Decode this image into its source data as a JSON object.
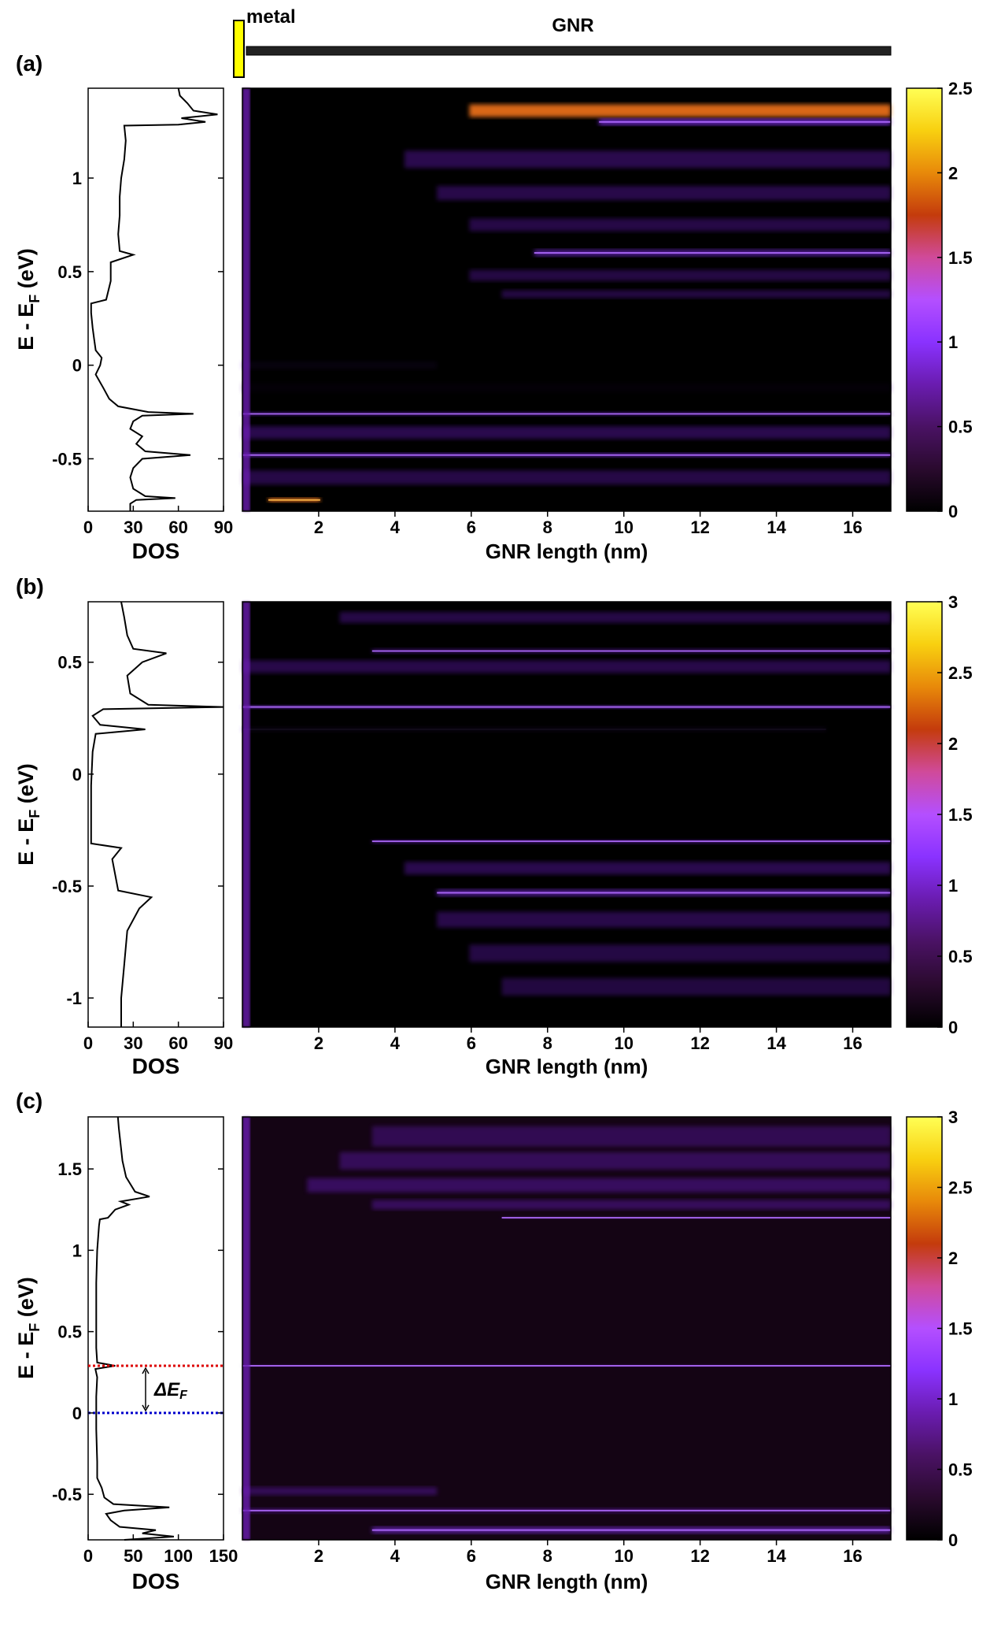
{
  "schematic": {
    "metal_label": "metal",
    "gnr_label": "GNR",
    "metal_color": "#ffff00",
    "ribbon_color": "#222222"
  },
  "colormap": [
    "#000000",
    "#2a0a2e",
    "#4a1264",
    "#6a1cb0",
    "#8a32ff",
    "#b44fff",
    "#d04a9a",
    "#c43b0c",
    "#e8890a",
    "#f8d010",
    "#ffff55"
  ],
  "panels": [
    {
      "label": "(a)",
      "dos": {
        "xlabel": "DOS",
        "ylabel_main": "E - E",
        "ylabel_sub": "F",
        "ylabel_tail": " (eV)",
        "xlim": [
          0,
          90
        ],
        "xticks": [
          "0",
          "30",
          "60",
          "90"
        ],
        "ylim": [
          -0.78,
          1.48
        ],
        "yticks": [
          "-0.5",
          "0",
          "0.5",
          "1"
        ]
      },
      "map": {
        "xlabel": "GNR length (nm)",
        "xlim": [
          0,
          17
        ],
        "xticks": [
          "2",
          "4",
          "6",
          "8",
          "10",
          "12",
          "14",
          "16"
        ]
      },
      "colorbar": {
        "ticks": [
          "0",
          "0.5",
          "1",
          "1.5",
          "2",
          "2.5"
        ],
        "max": 2.5
      }
    },
    {
      "label": "(b)",
      "dos": {
        "xlabel": "DOS",
        "ylabel_main": "E - E",
        "ylabel_sub": "F",
        "ylabel_tail": " (eV)",
        "xlim": [
          0,
          90
        ],
        "xticks": [
          "0",
          "30",
          "60",
          "90"
        ],
        "ylim": [
          -1.13,
          0.77
        ],
        "yticks": [
          "-1",
          "-0.5",
          "0",
          "0.5"
        ]
      },
      "map": {
        "xlabel": "GNR length (nm)",
        "xlim": [
          0,
          17
        ],
        "xticks": [
          "2",
          "4",
          "6",
          "8",
          "10",
          "12",
          "14",
          "16"
        ]
      },
      "colorbar": {
        "ticks": [
          "0",
          "0.5",
          "1",
          "1.5",
          "2",
          "2.5",
          "3"
        ],
        "max": 3
      }
    },
    {
      "label": "(c)",
      "dos": {
        "xlabel": "DOS",
        "ylabel_main": "E - E",
        "ylabel_sub": "F",
        "ylabel_tail": " (eV)",
        "xlim": [
          0,
          150
        ],
        "xticks": [
          "0",
          "50",
          "100",
          "150"
        ],
        "ylim": [
          -0.78,
          1.82
        ],
        "yticks": [
          "-0.5",
          "0",
          "0.5",
          "1",
          "1.5"
        ],
        "delta_label": "ΔE",
        "delta_sub": "F",
        "red_line_value": 0.29,
        "blue_line_value": 0,
        "red_color": "#dd0000",
        "blue_color": "#0000cc"
      },
      "map": {
        "xlabel": "GNR length (nm)",
        "xlim": [
          0,
          17
        ],
        "xticks": [
          "2",
          "4",
          "6",
          "8",
          "10",
          "12",
          "14",
          "16"
        ]
      },
      "colorbar": {
        "ticks": [
          "0",
          "0.5",
          "1",
          "1.5",
          "2",
          "2.5",
          "3"
        ],
        "max": 3
      }
    }
  ]
}
